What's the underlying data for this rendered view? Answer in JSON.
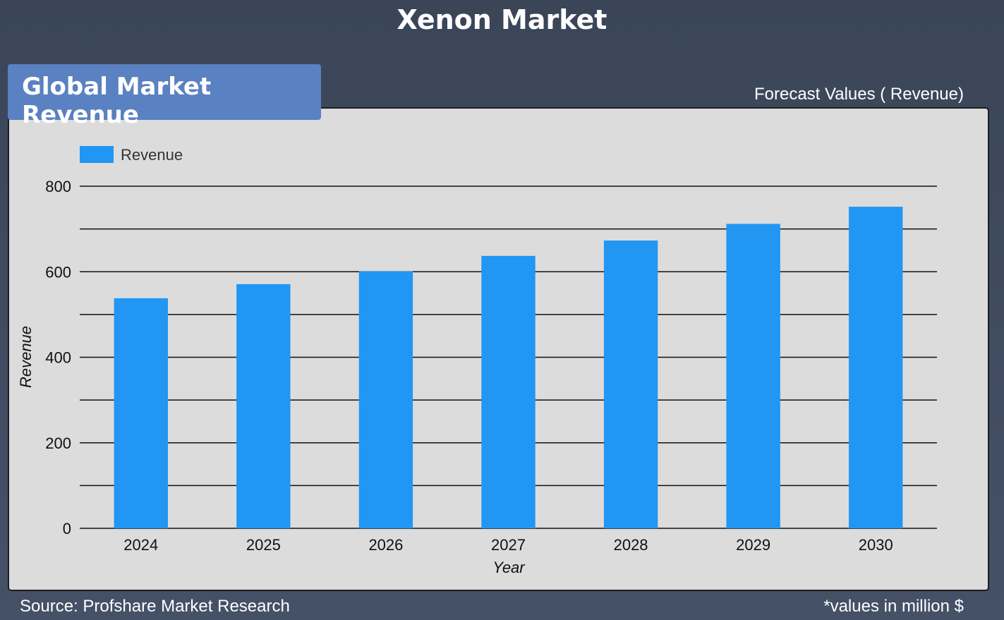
{
  "page": {
    "title": "Xenon Market",
    "panel_tag": "Global Market Revenue",
    "forecast_label": "Forecast Values ( Revenue)",
    "source": "Source: Profshare Market Research",
    "units_note": "*values in million $"
  },
  "colors": {
    "background": "#3f4a5f",
    "panel": "#dcdcdc",
    "tag": "#5a81c1",
    "bar": "#2196f3"
  },
  "chart_data": {
    "type": "bar",
    "categories": [
      "2024",
      "2025",
      "2026",
      "2027",
      "2028",
      "2029",
      "2030"
    ],
    "series": [
      {
        "name": "Revenue",
        "values": [
          538,
          571,
          601,
          637,
          673,
          712,
          752
        ]
      }
    ],
    "xlabel": "Year",
    "ylabel": "Revenue",
    "ylim": [
      0,
      800
    ],
    "yticks": [
      0,
      200,
      400,
      600,
      800
    ],
    "grid": true,
    "legend": "top-left"
  }
}
